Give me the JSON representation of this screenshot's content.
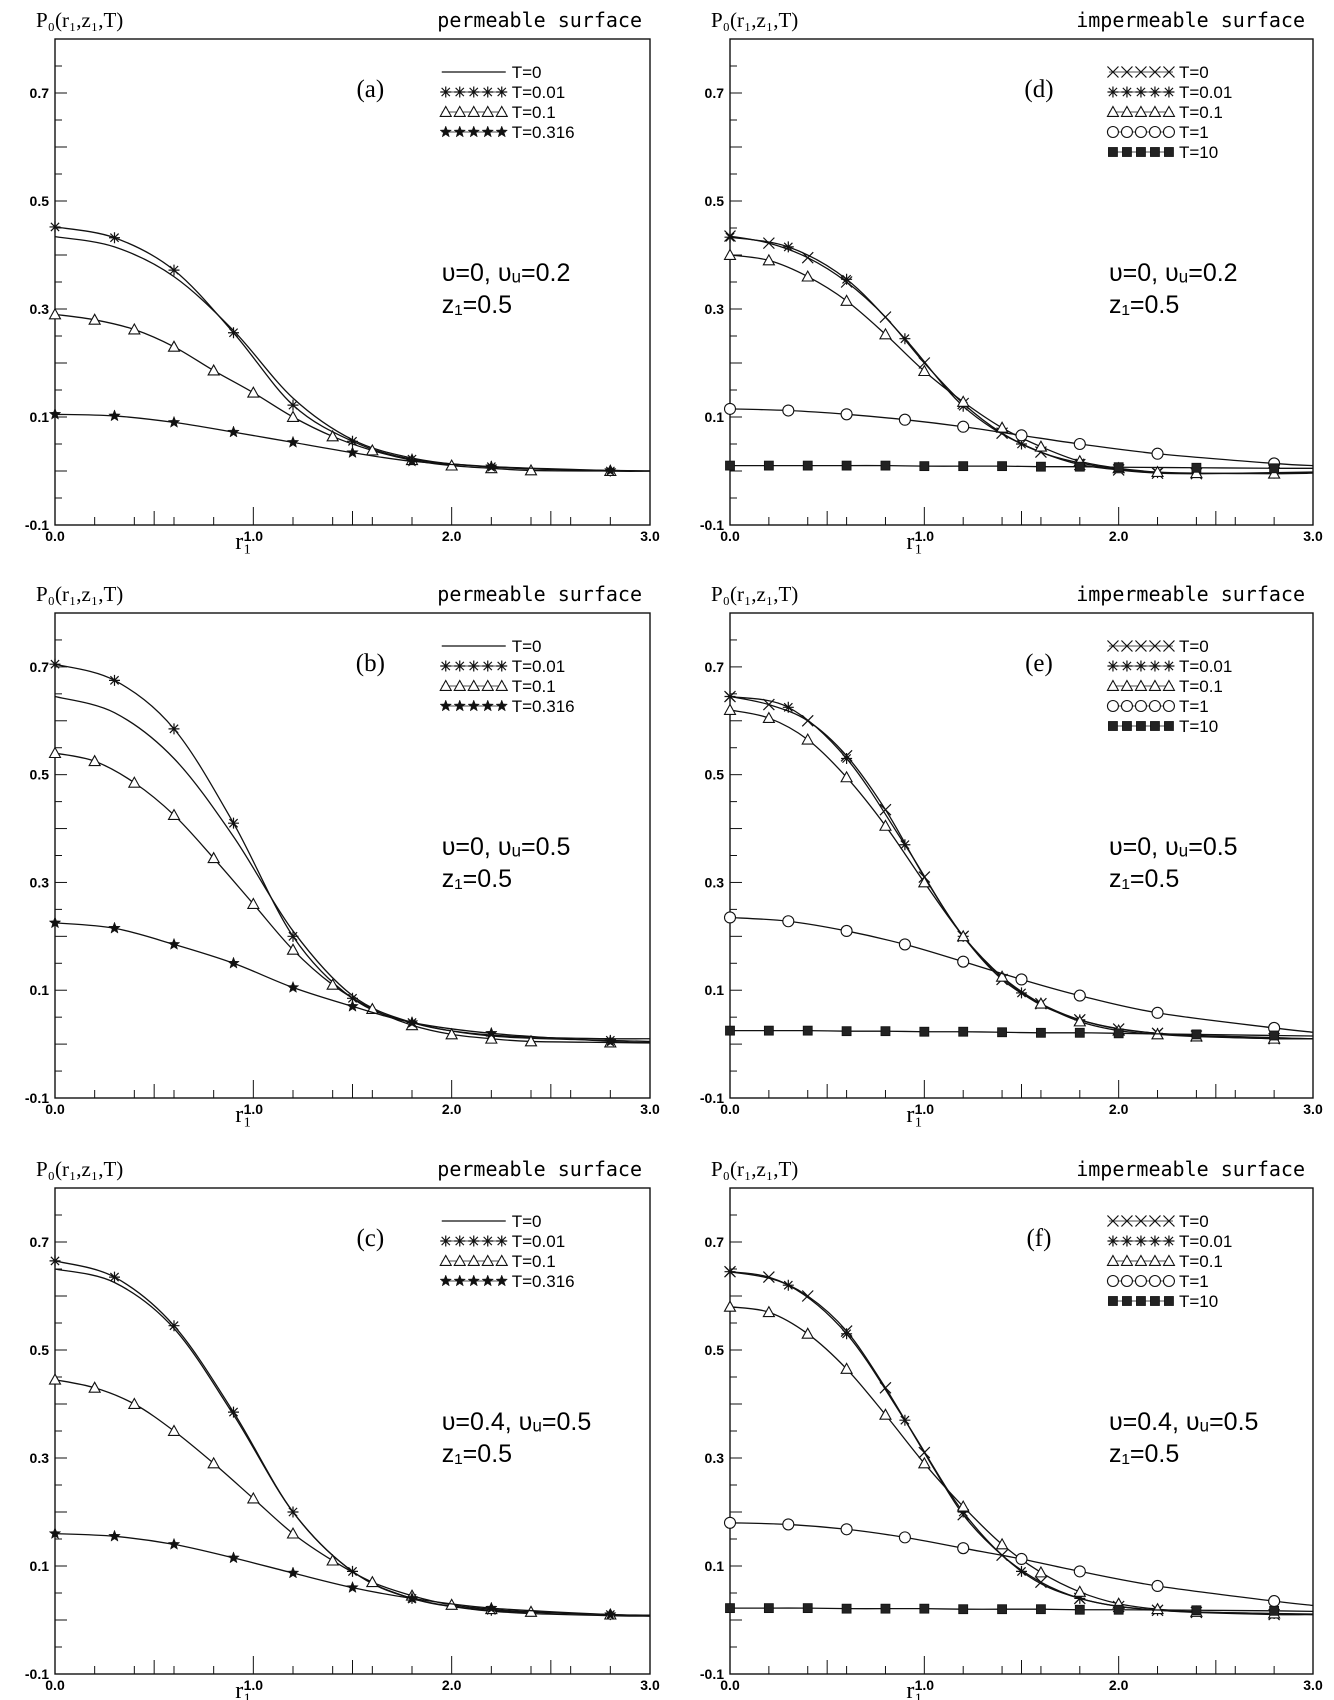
{
  "chart_data": [
    {
      "type": "line",
      "label": "(a)",
      "ylabel": "P₀(r₁,z₁,T)",
      "title": "permeable surface",
      "xlabel": "r₁",
      "xlim": [
        0,
        3
      ],
      "ylim": [
        -0.1,
        0.8
      ],
      "xticks": [
        "0.0",
        "1.0",
        "2.0",
        "3.0"
      ],
      "yticks": [
        "-0.1",
        "0.1",
        "0.3",
        "0.5",
        "0.7"
      ],
      "params": [
        "υ=0,  υᵤ=0.2",
        "z₁=0.5"
      ],
      "legend_position": "top-right",
      "series": [
        {
          "name": "T=0",
          "marker": "none",
          "x": [
            0,
            0.3,
            0.6,
            0.9,
            1.2,
            1.5,
            1.8,
            2.1,
            2.4,
            2.8,
            3.0
          ],
          "y": [
            0.434,
            0.415,
            0.36,
            0.26,
            0.135,
            0.058,
            0.024,
            0.01,
            0.004,
            0.001,
            0.0
          ]
        },
        {
          "name": "T=0.01",
          "marker": "asterisk",
          "x": [
            0,
            0.3,
            0.6,
            0.9,
            1.2,
            1.5,
            1.8,
            2.2,
            2.8,
            3.0
          ],
          "y": [
            0.452,
            0.432,
            0.372,
            0.256,
            0.122,
            0.055,
            0.022,
            0.008,
            0.0,
            0.0
          ]
        },
        {
          "name": "T=0.1",
          "marker": "triangle",
          "x": [
            0,
            0.2,
            0.4,
            0.6,
            0.8,
            1.0,
            1.2,
            1.4,
            1.6,
            1.8,
            2.0,
            2.2,
            2.4,
            2.8,
            3.0
          ],
          "y": [
            0.29,
            0.28,
            0.262,
            0.23,
            0.186,
            0.145,
            0.1,
            0.064,
            0.038,
            0.02,
            0.01,
            0.005,
            0.001,
            0.0,
            0.0
          ]
        },
        {
          "name": "T=0.316",
          "marker": "star",
          "x": [
            0,
            0.3,
            0.6,
            0.9,
            1.2,
            1.5,
            1.8,
            2.2,
            2.8,
            3.0
          ],
          "y": [
            0.105,
            0.102,
            0.09,
            0.072,
            0.053,
            0.034,
            0.018,
            0.008,
            0.001,
            0.0
          ]
        }
      ]
    },
    {
      "type": "line",
      "label": "(d)",
      "ylabel": "P₀(r₁,z₁,T)",
      "title": "impermeable surface",
      "xlabel": "r₁",
      "xlim": [
        0,
        3
      ],
      "ylim": [
        -0.1,
        0.8
      ],
      "xticks": [
        "0.0",
        "1.0",
        "2.0",
        "3.0"
      ],
      "yticks": [
        "-0.1",
        "0.1",
        "0.3",
        "0.5",
        "0.7"
      ],
      "params": [
        "υ=0,  υᵤ=0.2",
        "z₁=0.5"
      ],
      "legend_position": "top-right",
      "series": [
        {
          "name": "T=0",
          "marker": "cross",
          "x": [
            0,
            0.2,
            0.4,
            0.6,
            0.8,
            1.0,
            1.2,
            1.4,
            1.6,
            1.8,
            2.0,
            2.2,
            2.4,
            2.8,
            3.0
          ],
          "y": [
            0.435,
            0.422,
            0.395,
            0.35,
            0.285,
            0.2,
            0.125,
            0.07,
            0.035,
            0.012,
            0.002,
            -0.004,
            -0.005,
            -0.003,
            -0.002
          ]
        },
        {
          "name": "T=0.01",
          "marker": "asterisk",
          "x": [
            0,
            0.3,
            0.6,
            0.9,
            1.2,
            1.5,
            1.8,
            2.2,
            2.8,
            3.0
          ],
          "y": [
            0.433,
            0.415,
            0.355,
            0.245,
            0.12,
            0.05,
            0.015,
            -0.003,
            -0.004,
            -0.003
          ]
        },
        {
          "name": "T=0.1",
          "marker": "triangle",
          "x": [
            0,
            0.2,
            0.4,
            0.6,
            0.8,
            1.0,
            1.2,
            1.4,
            1.6,
            1.8,
            2.0,
            2.2,
            2.4,
            2.8,
            3.0
          ],
          "y": [
            0.4,
            0.39,
            0.36,
            0.315,
            0.253,
            0.185,
            0.128,
            0.08,
            0.045,
            0.018,
            0.005,
            -0.002,
            -0.004,
            -0.005,
            -0.004
          ]
        },
        {
          "name": "T=1",
          "marker": "circle",
          "x": [
            0,
            0.3,
            0.6,
            0.9,
            1.2,
            1.5,
            1.8,
            2.2,
            2.8,
            3.0
          ],
          "y": [
            0.115,
            0.112,
            0.105,
            0.095,
            0.082,
            0.066,
            0.05,
            0.032,
            0.014,
            0.01
          ]
        },
        {
          "name": "T=10",
          "marker": "square",
          "x": [
            0,
            0.2,
            0.4,
            0.6,
            0.8,
            1.0,
            1.2,
            1.4,
            1.6,
            1.8,
            2.0,
            2.4,
            2.8,
            3.0
          ],
          "y": [
            0.01,
            0.01,
            0.01,
            0.01,
            0.01,
            0.009,
            0.009,
            0.009,
            0.008,
            0.008,
            0.007,
            0.006,
            0.005,
            0.005
          ]
        }
      ]
    },
    {
      "type": "line",
      "label": "(b)",
      "ylabel": "P₀(r₁,z₁,T)",
      "title": "permeable surface",
      "xlabel": "r₁",
      "xlim": [
        0,
        3
      ],
      "ylim": [
        -0.1,
        0.8
      ],
      "xticks": [
        "0.0",
        "1.0",
        "2.0",
        "3.0"
      ],
      "yticks": [
        "-0.1",
        "0.1",
        "0.3",
        "0.5",
        "0.7"
      ],
      "params": [
        "υ=0,  υᵤ=0.5",
        "z₁=0.5"
      ],
      "legend_position": "top-right",
      "series": [
        {
          "name": "T=0",
          "marker": "none",
          "x": [
            0,
            0.3,
            0.6,
            0.9,
            1.2,
            1.5,
            1.8,
            2.1,
            2.4,
            2.8,
            3.0
          ],
          "y": [
            0.645,
            0.615,
            0.53,
            0.385,
            0.21,
            0.09,
            0.04,
            0.02,
            0.013,
            0.01,
            0.01
          ]
        },
        {
          "name": "T=0.01",
          "marker": "asterisk",
          "x": [
            0,
            0.3,
            0.6,
            0.9,
            1.2,
            1.5,
            1.8,
            2.2,
            2.8,
            3.0
          ],
          "y": [
            0.705,
            0.675,
            0.585,
            0.41,
            0.2,
            0.085,
            0.04,
            0.015,
            0.007,
            0.005
          ]
        },
        {
          "name": "T=0.1",
          "marker": "triangle",
          "x": [
            0,
            0.2,
            0.4,
            0.6,
            0.8,
            1.0,
            1.2,
            1.4,
            1.6,
            1.8,
            2.0,
            2.2,
            2.4,
            2.8,
            3.0
          ],
          "y": [
            0.54,
            0.525,
            0.485,
            0.425,
            0.345,
            0.26,
            0.175,
            0.11,
            0.065,
            0.035,
            0.018,
            0.01,
            0.005,
            0.003,
            0.002
          ]
        },
        {
          "name": "T=0.316",
          "marker": "star",
          "x": [
            0,
            0.3,
            0.6,
            0.9,
            1.2,
            1.5,
            1.8,
            2.2,
            2.8,
            3.0
          ],
          "y": [
            0.225,
            0.215,
            0.185,
            0.15,
            0.105,
            0.07,
            0.04,
            0.02,
            0.005,
            0.003
          ]
        }
      ]
    },
    {
      "type": "line",
      "label": "(e)",
      "ylabel": "P₀(r₁,z₁,T)",
      "title": "impermeable surface",
      "xlabel": "r₁",
      "xlim": [
        0,
        3
      ],
      "ylim": [
        -0.1,
        0.8
      ],
      "xticks": [
        "0.0",
        "1.0",
        "2.0",
        "3.0"
      ],
      "yticks": [
        "-0.1",
        "0.1",
        "0.3",
        "0.5",
        "0.7"
      ],
      "params": [
        "υ=0,  υᵤ=0.5",
        "z₁=0.5"
      ],
      "legend_position": "top-right",
      "series": [
        {
          "name": "T=0",
          "marker": "cross",
          "x": [
            0,
            0.2,
            0.4,
            0.6,
            0.8,
            1.0,
            1.2,
            1.4,
            1.6,
            1.8,
            2.0,
            2.2,
            2.4,
            2.8,
            3.0
          ],
          "y": [
            0.645,
            0.63,
            0.6,
            0.535,
            0.435,
            0.31,
            0.2,
            0.12,
            0.075,
            0.045,
            0.028,
            0.02,
            0.015,
            0.01,
            0.01
          ]
        },
        {
          "name": "T=0.01",
          "marker": "asterisk",
          "x": [
            0,
            0.3,
            0.6,
            0.9,
            1.2,
            1.5,
            1.8,
            2.2,
            2.8,
            3.0
          ],
          "y": [
            0.645,
            0.625,
            0.53,
            0.37,
            0.2,
            0.095,
            0.045,
            0.02,
            0.012,
            0.01
          ]
        },
        {
          "name": "T=0.1",
          "marker": "triangle",
          "x": [
            0,
            0.2,
            0.4,
            0.6,
            0.8,
            1.0,
            1.2,
            1.4,
            1.6,
            1.8,
            2.0,
            2.2,
            2.4,
            2.8,
            3.0
          ],
          "y": [
            0.62,
            0.605,
            0.565,
            0.495,
            0.405,
            0.3,
            0.2,
            0.125,
            0.075,
            0.042,
            0.025,
            0.018,
            0.014,
            0.01,
            0.01
          ]
        },
        {
          "name": "T=1",
          "marker": "circle",
          "x": [
            0,
            0.3,
            0.6,
            0.9,
            1.2,
            1.5,
            1.8,
            2.2,
            2.8,
            3.0
          ],
          "y": [
            0.235,
            0.228,
            0.21,
            0.185,
            0.153,
            0.12,
            0.09,
            0.058,
            0.03,
            0.022
          ]
        },
        {
          "name": "T=10",
          "marker": "square",
          "x": [
            0,
            0.2,
            0.4,
            0.6,
            0.8,
            1.0,
            1.2,
            1.4,
            1.6,
            1.8,
            2.0,
            2.4,
            2.8,
            3.0
          ],
          "y": [
            0.025,
            0.025,
            0.025,
            0.024,
            0.024,
            0.023,
            0.023,
            0.022,
            0.021,
            0.021,
            0.02,
            0.018,
            0.016,
            0.015
          ]
        }
      ]
    },
    {
      "type": "line",
      "label": "(c)",
      "ylabel": "P₀(r₁,z₁,T)",
      "title": "permeable surface",
      "xlabel": "r₁",
      "xlim": [
        0,
        3
      ],
      "ylim": [
        -0.1,
        0.8
      ],
      "xticks": [
        "0.0",
        "1.0",
        "2.0",
        "3.0"
      ],
      "yticks": [
        "-0.1",
        "0.1",
        "0.3",
        "0.5",
        "0.7"
      ],
      "params": [
        "υ=0.4,  υᵤ=0.5",
        "z₁=0.5"
      ],
      "legend_position": "top-right",
      "series": [
        {
          "name": "T=0",
          "marker": "none",
          "x": [
            0,
            0.3,
            0.6,
            0.9,
            1.2,
            1.5,
            1.8,
            2.1,
            2.4,
            2.8,
            3.0
          ],
          "y": [
            0.65,
            0.625,
            0.54,
            0.38,
            0.2,
            0.09,
            0.04,
            0.02,
            0.012,
            0.008,
            0.007
          ]
        },
        {
          "name": "T=0.01",
          "marker": "asterisk",
          "x": [
            0,
            0.3,
            0.6,
            0.9,
            1.2,
            1.5,
            1.8,
            2.2,
            2.8,
            3.0
          ],
          "y": [
            0.665,
            0.635,
            0.545,
            0.385,
            0.2,
            0.09,
            0.04,
            0.018,
            0.01,
            0.008
          ]
        },
        {
          "name": "T=0.1",
          "marker": "triangle",
          "x": [
            0,
            0.2,
            0.4,
            0.6,
            0.8,
            1.0,
            1.2,
            1.4,
            1.6,
            1.8,
            2.0,
            2.2,
            2.4,
            2.8,
            3.0
          ],
          "y": [
            0.445,
            0.43,
            0.4,
            0.35,
            0.29,
            0.225,
            0.16,
            0.11,
            0.07,
            0.045,
            0.028,
            0.02,
            0.015,
            0.01,
            0.009
          ]
        },
        {
          "name": "T=0.316",
          "marker": "star",
          "x": [
            0,
            0.3,
            0.6,
            0.9,
            1.2,
            1.5,
            1.8,
            2.2,
            2.8,
            3.0
          ],
          "y": [
            0.16,
            0.155,
            0.14,
            0.115,
            0.087,
            0.06,
            0.04,
            0.022,
            0.01,
            0.008
          ]
        }
      ]
    },
    {
      "type": "line",
      "label": "(f)",
      "ylabel": "P₀(r₁,z₁,T)",
      "title": "impermeable surface",
      "xlabel": "r₁",
      "xlim": [
        0,
        3
      ],
      "ylim": [
        -0.1,
        0.8
      ],
      "xticks": [
        "0.0",
        "1.0",
        "2.0",
        "3.0"
      ],
      "yticks": [
        "-0.1",
        "0.1",
        "0.3",
        "0.5",
        "0.7"
      ],
      "params": [
        "υ=0.4,  υᵤ=0.5",
        "z₁=0.5"
      ],
      "legend_position": "top-right",
      "series": [
        {
          "name": "T=0",
          "marker": "cross",
          "x": [
            0,
            0.2,
            0.4,
            0.6,
            0.8,
            1.0,
            1.2,
            1.4,
            1.6,
            1.8,
            2.0,
            2.2,
            2.4,
            2.8,
            3.0
          ],
          "y": [
            0.645,
            0.635,
            0.6,
            0.535,
            0.43,
            0.31,
            0.195,
            0.12,
            0.07,
            0.04,
            0.025,
            0.018,
            0.014,
            0.01,
            0.01
          ]
        },
        {
          "name": "T=0.01",
          "marker": "asterisk",
          "x": [
            0,
            0.3,
            0.6,
            0.9,
            1.2,
            1.5,
            1.8,
            2.2,
            2.8,
            3.0
          ],
          "y": [
            0.645,
            0.62,
            0.53,
            0.37,
            0.2,
            0.09,
            0.04,
            0.018,
            0.012,
            0.01
          ]
        },
        {
          "name": "T=0.1",
          "marker": "triangle",
          "x": [
            0,
            0.2,
            0.4,
            0.6,
            0.8,
            1.0,
            1.2,
            1.4,
            1.6,
            1.8,
            2.0,
            2.2,
            2.4,
            2.8,
            3.0
          ],
          "y": [
            0.58,
            0.57,
            0.53,
            0.465,
            0.38,
            0.29,
            0.21,
            0.14,
            0.088,
            0.052,
            0.03,
            0.02,
            0.015,
            0.012,
            0.011
          ]
        },
        {
          "name": "T=1",
          "marker": "circle",
          "x": [
            0,
            0.3,
            0.6,
            0.9,
            1.2,
            1.5,
            1.8,
            2.2,
            2.8,
            3.0
          ],
          "y": [
            0.18,
            0.177,
            0.168,
            0.153,
            0.133,
            0.113,
            0.09,
            0.063,
            0.035,
            0.027
          ]
        },
        {
          "name": "T=10",
          "marker": "square",
          "x": [
            0,
            0.2,
            0.4,
            0.6,
            0.8,
            1.0,
            1.2,
            1.4,
            1.6,
            1.8,
            2.0,
            2.4,
            2.8,
            3.0
          ],
          "y": [
            0.022,
            0.022,
            0.022,
            0.021,
            0.021,
            0.021,
            0.02,
            0.02,
            0.02,
            0.019,
            0.019,
            0.018,
            0.017,
            0.016
          ]
        }
      ]
    }
  ]
}
